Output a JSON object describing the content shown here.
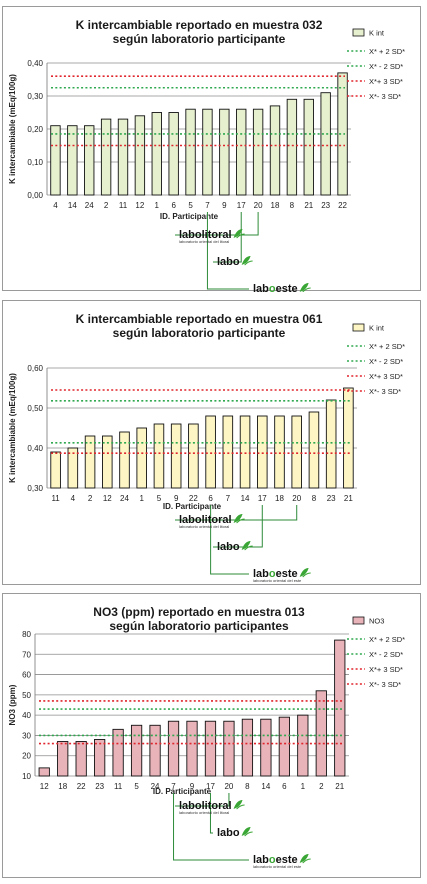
{
  "colors": {
    "green_line": "#2fa84f",
    "red_line": "#e0262d",
    "logo_green": "#3aa635",
    "connector": "#2e8b3a"
  },
  "legend_labels": {
    "sd2_upper": "X* + 2 SD*",
    "sd2_lower": "X* - 2 SD*",
    "sd3_upper": "X*+ 3 SD*",
    "sd3_lower": "X*- 3 SD*"
  },
  "logos": [
    {
      "icon": "leaf-logo-icon",
      "name_black": "lab",
      "name_mid": "o",
      "name_rest": "este",
      "tagline": "laboratorio oriental del este",
      "has_tagline": true
    },
    {
      "icon": "leaf-logo-icon",
      "name_black": "labo",
      "name_mid": "",
      "name_rest": "",
      "tagline": "",
      "has_tagline": false
    },
    {
      "icon": "leaf-logo-icon",
      "name_black": "labo",
      "name_mid": "",
      "name_rest": "litoral",
      "tagline": "laboratorio oriental del litoral",
      "has_tagline": true
    }
  ],
  "chart_data": [
    {
      "type": "bar",
      "title": [
        "K intercambiable reportado en muestra 032",
        "según laboratorio participante"
      ],
      "xlabel": "ID. Participante",
      "ylabel": "K intercambiable (mEq/100g)",
      "categories": [
        "4",
        "14",
        "24",
        "2",
        "11",
        "12",
        "1",
        "6",
        "5",
        "7",
        "9",
        "17",
        "20",
        "18",
        "8",
        "21",
        "23",
        "22"
      ],
      "series": [
        {
          "name": "K int",
          "values": [
            0.21,
            0.21,
            0.21,
            0.23,
            0.23,
            0.24,
            0.25,
            0.25,
            0.26,
            0.26,
            0.26,
            0.26,
            0.26,
            0.27,
            0.29,
            0.29,
            0.31,
            0.37
          ],
          "color": "#e6f0cf"
        }
      ],
      "yticks": [
        "0,00",
        "0,10",
        "0,20",
        "0,30",
        "0,40"
      ],
      "ylim": [
        0,
        0.4
      ],
      "reference_lines": [
        {
          "name": "X* + 2 SD*",
          "value": 0.325,
          "color": "#2fa84f"
        },
        {
          "name": "X* - 2 SD*",
          "value": 0.185,
          "color": "#2fa84f"
        },
        {
          "name": "X*+ 3 SD*",
          "value": 0.36,
          "color": "#e0262d"
        },
        {
          "name": "X*- 3 SD*",
          "value": 0.15,
          "color": "#e0262d"
        }
      ],
      "highlighted": [
        "7",
        "17",
        "20"
      ],
      "grid": true,
      "legend_position": "right"
    },
    {
      "type": "bar",
      "title": [
        "K intercambiable reportado en muestra 061",
        "según laboratorio participante"
      ],
      "xlabel": "ID. Participante",
      "ylabel": "K intercambiable (mEq/100g)",
      "categories": [
        "11",
        "4",
        "2",
        "12",
        "24",
        "1",
        "5",
        "9",
        "22",
        "6",
        "7",
        "14",
        "17",
        "18",
        "20",
        "8",
        "23",
        "21"
      ],
      "series": [
        {
          "name": "K int",
          "values": [
            0.39,
            0.4,
            0.43,
            0.43,
            0.44,
            0.45,
            0.46,
            0.46,
            0.46,
            0.48,
            0.48,
            0.48,
            0.48,
            0.48,
            0.48,
            0.49,
            0.52,
            0.55
          ],
          "color": "#fdf6c4"
        }
      ],
      "yticks": [
        "0,30",
        "0,40",
        "0,50",
        "0,60"
      ],
      "ylim": [
        0.3,
        0.6
      ],
      "reference_lines": [
        {
          "name": "X* + 2 SD*",
          "value": 0.518,
          "color": "#2fa84f"
        },
        {
          "name": "X* - 2 SD*",
          "value": 0.413,
          "color": "#2fa84f"
        },
        {
          "name": "X*+ 3 SD*",
          "value": 0.545,
          "color": "#e0262d"
        },
        {
          "name": "X*- 3 SD*",
          "value": 0.387,
          "color": "#e0262d"
        }
      ],
      "highlighted": [
        "6",
        "17",
        "20"
      ],
      "grid": true,
      "legend_position": "right"
    },
    {
      "type": "bar",
      "title": [
        "NO3 (ppm) reportado en muestra 013",
        "según laboratorio participantes"
      ],
      "xlabel": "ID. Participante",
      "ylabel": "NO3 (ppm)",
      "categories": [
        "12",
        "18",
        "22",
        "23",
        "11",
        "5",
        "24",
        "7",
        "9",
        "17",
        "20",
        "8",
        "14",
        "6",
        "1",
        "2",
        "21"
      ],
      "series": [
        {
          "name": "NO3",
          "values": [
            14,
            27,
            27,
            28,
            33,
            35,
            35,
            37,
            37,
            37,
            37,
            38,
            38,
            39,
            40,
            52,
            77
          ],
          "color": "#e8b3b9"
        }
      ],
      "yticks": [
        "10",
        "20",
        "30",
        "40",
        "50",
        "60",
        "70",
        "80"
      ],
      "ylim": [
        10,
        80
      ],
      "reference_lines": [
        {
          "name": "X* + 2 SD*",
          "value": 43,
          "color": "#2fa84f"
        },
        {
          "name": "X* - 2 SD*",
          "value": 30,
          "color": "#2fa84f"
        },
        {
          "name": "X*+ 3 SD*",
          "value": 47,
          "color": "#e0262d"
        },
        {
          "name": "X*- 3 SD*",
          "value": 26,
          "color": "#e0262d"
        }
      ],
      "highlighted": [
        "7",
        "17",
        "20"
      ],
      "grid": true,
      "legend_position": "right"
    }
  ]
}
